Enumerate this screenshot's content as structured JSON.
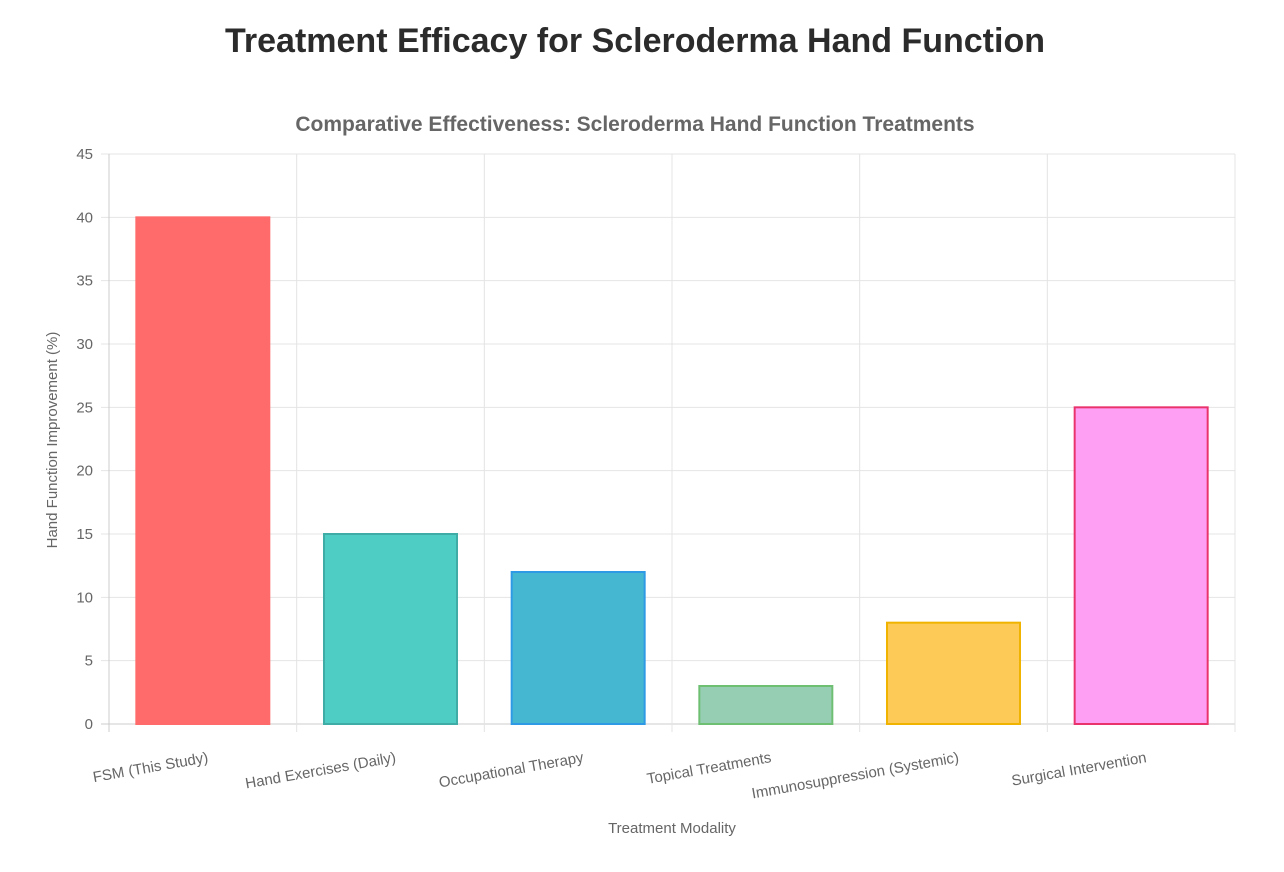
{
  "page": {
    "title": "Treatment Efficacy for Scleroderma Hand Function"
  },
  "chart_data": {
    "type": "bar",
    "title": "Comparative Effectiveness: Scleroderma Hand Function Treatments",
    "xlabel": "Treatment Modality",
    "ylabel": "Hand Function Improvement (%)",
    "ylim": [
      0,
      45
    ],
    "ytick_step": 5,
    "grid": true,
    "legend": "none",
    "categories": [
      "FSM (This Study)",
      "Hand Exercises (Daily)",
      "Occupational Therapy",
      "Topical Treatments",
      "Immunosuppression (Systemic)",
      "Surgical Intervention"
    ],
    "values": [
      40,
      15,
      12,
      3,
      8,
      25
    ],
    "colors": {
      "fill": [
        "#ff6b6b",
        "#4ecdc4",
        "#45b7d1",
        "#96ceb4",
        "#feca57",
        "#ff9ff3"
      ],
      "border": [
        "#ff6b6b",
        "#3fada5",
        "#2e9ae6",
        "#6fbf73",
        "#f0b400",
        "#e8336d"
      ]
    }
  }
}
